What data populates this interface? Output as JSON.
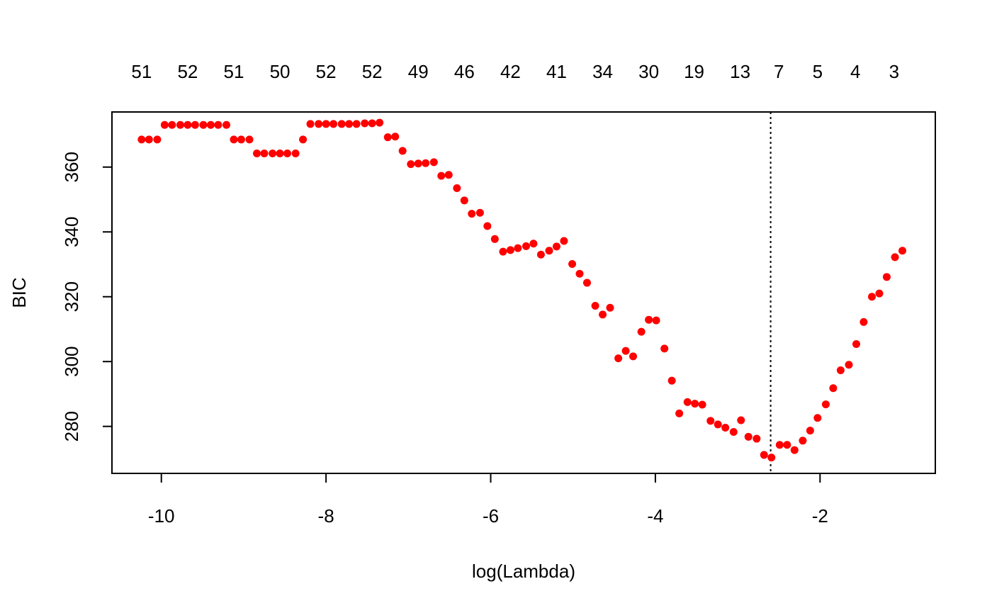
{
  "chart_data": {
    "type": "scatter",
    "title": "",
    "xlabel": "log(Lambda)",
    "ylabel": "BIC",
    "xlim": [
      -10.6,
      -0.6
    ],
    "ylim": [
      265.5,
      377
    ],
    "x_ticks": [
      -10,
      -8,
      -6,
      -4,
      -2
    ],
    "x_tick_labels": [
      "-10",
      "-8",
      "-6",
      "-4",
      "-2"
    ],
    "y_ticks": [
      280,
      300,
      320,
      340,
      360
    ],
    "y_tick_labels": [
      "280",
      "300",
      "320",
      "340",
      "360"
    ],
    "top_axis": {
      "positions": [
        -10.24,
        -9.68,
        -9.12,
        -8.56,
        -8.0,
        -7.44,
        -6.88,
        -6.32,
        -5.76,
        -5.2,
        -4.64,
        -4.08,
        -3.53,
        -2.97,
        -2.5,
        -2.03,
        -1.57,
        -1.1
      ],
      "labels": [
        "51",
        "52",
        "51",
        "50",
        "52",
        "52",
        "49",
        "46",
        "42",
        "41",
        "34",
        "30",
        "19",
        "13",
        "7",
        "5",
        "4",
        "3"
      ]
    },
    "vline": {
      "x": -2.6,
      "style": "dotted"
    },
    "grid": false,
    "legend": "none",
    "point_color": "#ff0000",
    "series": [
      {
        "x": [
          -10.24,
          -10.15,
          -10.05,
          -9.96,
          -9.87,
          -9.77,
          -9.68,
          -9.59,
          -9.49,
          -9.4,
          -9.31,
          -9.21,
          -9.12,
          -9.03,
          -8.93,
          -8.84,
          -8.75,
          -8.65,
          -8.56,
          -8.47,
          -8.37,
          -8.28,
          -8.19,
          -8.09,
          -8.0,
          -7.91,
          -7.81,
          -7.72,
          -7.63,
          -7.53,
          -7.44,
          -7.35,
          -7.25,
          -7.16,
          -7.07,
          -6.97,
          -6.88,
          -6.79,
          -6.69,
          -6.6,
          -6.51,
          -6.41,
          -6.32,
          -6.23,
          -6.13,
          -6.04,
          -5.95,
          -5.85,
          -5.76,
          -5.67,
          -5.57,
          -5.48,
          -5.39,
          -5.29,
          -5.2,
          -5.11,
          -5.01,
          -4.92,
          -4.83,
          -4.73,
          -4.64,
          -4.55,
          -4.45,
          -4.36,
          -4.27,
          -4.17,
          -4.08,
          -3.99,
          -3.89,
          -3.8,
          -3.71,
          -3.61,
          -3.52,
          -3.43,
          -3.33,
          -3.24,
          -3.15,
          -3.05,
          -2.96,
          -2.87,
          -2.77,
          -2.68,
          -2.59,
          -2.49,
          -2.4,
          -2.31,
          -2.21,
          -2.12,
          -2.03,
          -1.93,
          -1.84,
          -1.75,
          -1.65,
          -1.56,
          -1.47,
          -1.37,
          -1.28,
          -1.19,
          -1.09,
          -1.0
        ],
        "y": [
          368.5,
          368.5,
          368.5,
          373.0,
          373.0,
          373.0,
          373.0,
          373.0,
          373.0,
          373.0,
          373.0,
          373.0,
          368.5,
          368.5,
          368.5,
          364.2,
          364.2,
          364.2,
          364.2,
          364.2,
          364.2,
          368.5,
          373.3,
          373.3,
          373.3,
          373.3,
          373.3,
          373.3,
          373.3,
          373.5,
          373.5,
          373.7,
          369.2,
          369.4,
          365.0,
          360.9,
          361.1,
          361.2,
          361.5,
          357.3,
          357.6,
          353.5,
          349.7,
          345.6,
          345.9,
          341.8,
          337.8,
          333.9,
          334.4,
          335.0,
          335.6,
          336.4,
          333.0,
          334.2,
          335.5,
          337.2,
          330.1,
          327.1,
          324.3,
          317.2,
          314.5,
          316.6,
          301.0,
          303.3,
          301.6,
          309.2,
          312.9,
          312.7,
          304.0,
          294.1,
          284.0,
          287.5,
          287.0,
          286.7,
          281.7,
          280.6,
          279.6,
          278.3,
          281.9,
          276.8,
          276.2,
          271.2,
          270.4,
          274.3,
          274.3,
          272.7,
          275.6,
          278.7,
          282.6,
          286.8,
          291.8,
          297.3,
          299.0,
          305.4,
          312.2,
          320.0,
          321.0,
          326.1,
          332.2,
          334.2
        ]
      }
    ]
  }
}
